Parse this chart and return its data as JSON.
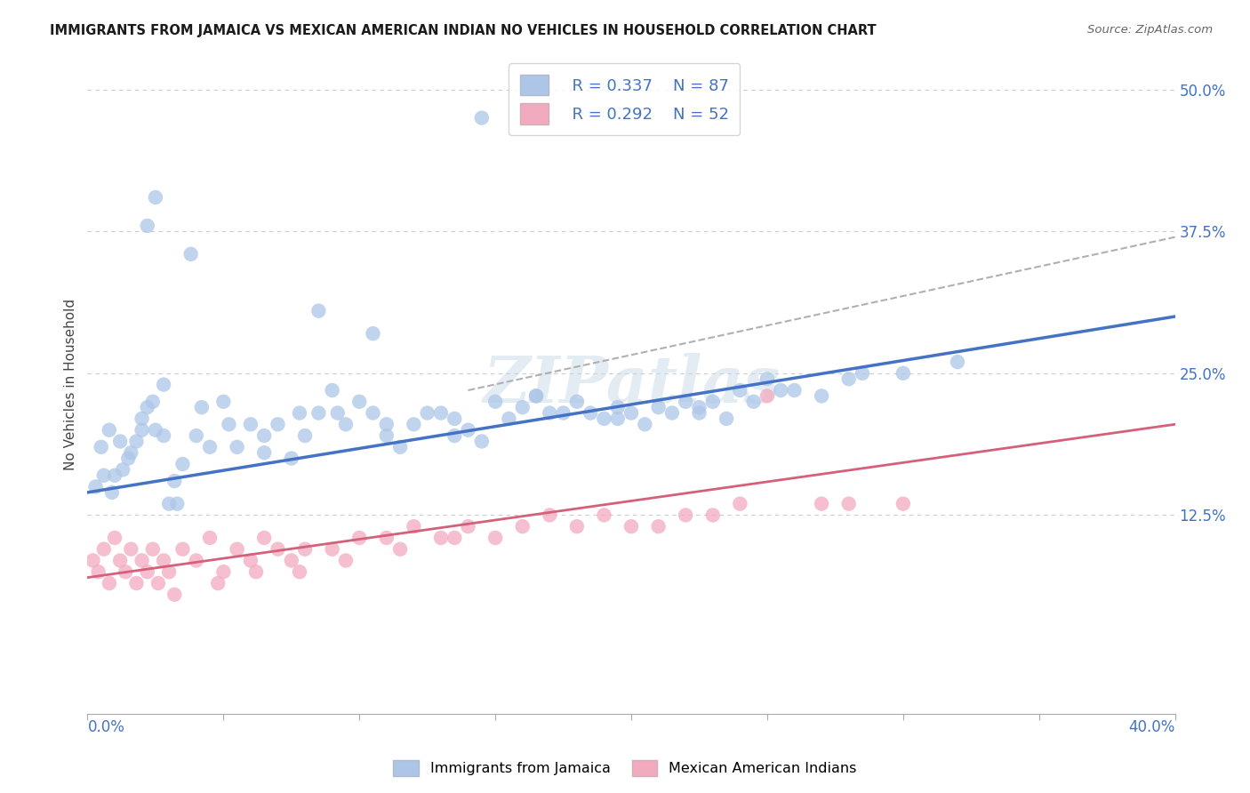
{
  "title": "IMMIGRANTS FROM JAMAICA VS MEXICAN AMERICAN INDIAN NO VEHICLES IN HOUSEHOLD CORRELATION CHART",
  "source": "Source: ZipAtlas.com",
  "ylabel": "No Vehicles in Household",
  "xlim": [
    0.0,
    40.0
  ],
  "ylim": [
    -5.0,
    53.0
  ],
  "yticks_right": [
    12.5,
    25.0,
    37.5,
    50.0
  ],
  "xticks": [
    0.0,
    5.0,
    10.0,
    15.0,
    20.0,
    25.0,
    30.0,
    35.0,
    40.0
  ],
  "color_blue": "#adc6e8",
  "color_pink": "#f2aabf",
  "color_blue_text": "#4472c4",
  "color_pink_text": "#d4607a",
  "color_trend_blue": "#4472c4",
  "color_trend_pink": "#d4607a",
  "color_trend_gray": "#b0b0b0",
  "watermark": "ZIPatlas",
  "scatter_blue_x": [
    0.5,
    0.8,
    1.0,
    1.2,
    1.5,
    1.8,
    2.0,
    2.2,
    2.5,
    2.8,
    3.0,
    3.2,
    3.5,
    4.0,
    4.5,
    5.0,
    5.5,
    6.0,
    6.5,
    7.0,
    7.5,
    8.0,
    8.5,
    9.0,
    9.5,
    10.0,
    10.5,
    11.0,
    11.5,
    12.0,
    12.5,
    13.0,
    13.5,
    14.0,
    14.5,
    15.0,
    15.5,
    16.0,
    16.5,
    17.0,
    17.5,
    18.0,
    18.5,
    19.0,
    19.5,
    20.0,
    20.5,
    21.0,
    21.5,
    22.0,
    22.5,
    23.0,
    23.5,
    24.0,
    24.5,
    25.0,
    26.0,
    27.0,
    28.0,
    30.0,
    0.3,
    0.6,
    0.9,
    1.3,
    1.6,
    2.0,
    2.4,
    2.8,
    3.3,
    4.2,
    5.2,
    6.5,
    7.8,
    9.2,
    11.0,
    13.5,
    16.5,
    19.5,
    22.5,
    25.5,
    28.5,
    32.0,
    2.2,
    2.5,
    3.8,
    8.5,
    10.5,
    14.5
  ],
  "scatter_blue_y": [
    18.5,
    20.0,
    16.0,
    19.0,
    17.5,
    19.0,
    21.0,
    22.0,
    20.0,
    19.5,
    13.5,
    15.5,
    17.0,
    19.5,
    18.5,
    22.5,
    18.5,
    20.5,
    18.0,
    20.5,
    17.5,
    19.5,
    21.5,
    23.5,
    20.5,
    22.5,
    21.5,
    19.5,
    18.5,
    20.5,
    21.5,
    21.5,
    19.5,
    20.0,
    19.0,
    22.5,
    21.0,
    22.0,
    23.0,
    21.5,
    21.5,
    22.5,
    21.5,
    21.0,
    21.0,
    21.5,
    20.5,
    22.0,
    21.5,
    22.5,
    21.5,
    22.5,
    21.0,
    23.5,
    22.5,
    24.5,
    23.5,
    23.0,
    24.5,
    25.0,
    15.0,
    16.0,
    14.5,
    16.5,
    18.0,
    20.0,
    22.5,
    24.0,
    13.5,
    22.0,
    20.5,
    19.5,
    21.5,
    21.5,
    20.5,
    21.0,
    23.0,
    22.0,
    22.0,
    23.5,
    25.0,
    26.0,
    38.0,
    40.5,
    35.5,
    30.5,
    28.5,
    47.5
  ],
  "scatter_pink_x": [
    0.2,
    0.4,
    0.6,
    0.8,
    1.0,
    1.2,
    1.4,
    1.6,
    1.8,
    2.0,
    2.2,
    2.4,
    2.6,
    2.8,
    3.0,
    3.5,
    4.0,
    4.5,
    5.0,
    5.5,
    6.0,
    6.5,
    7.0,
    7.5,
    8.0,
    9.0,
    10.0,
    11.0,
    12.0,
    13.0,
    14.0,
    15.0,
    16.0,
    17.0,
    18.0,
    19.0,
    20.0,
    21.0,
    22.0,
    23.0,
    24.0,
    25.0,
    27.0,
    30.0,
    3.2,
    4.8,
    6.2,
    7.8,
    9.5,
    11.5,
    13.5,
    28.0
  ],
  "scatter_pink_y": [
    8.5,
    7.5,
    9.5,
    6.5,
    10.5,
    8.5,
    7.5,
    9.5,
    6.5,
    8.5,
    7.5,
    9.5,
    6.5,
    8.5,
    7.5,
    9.5,
    8.5,
    10.5,
    7.5,
    9.5,
    8.5,
    10.5,
    9.5,
    8.5,
    9.5,
    9.5,
    10.5,
    10.5,
    11.5,
    10.5,
    11.5,
    10.5,
    11.5,
    12.5,
    11.5,
    12.5,
    11.5,
    11.5,
    12.5,
    12.5,
    13.5,
    23.0,
    13.5,
    13.5,
    5.5,
    6.5,
    7.5,
    7.5,
    8.5,
    9.5,
    10.5,
    13.5
  ],
  "trend_blue_x0": 0.0,
  "trend_blue_x1": 40.0,
  "trend_blue_y0": 14.5,
  "trend_blue_y1": 30.0,
  "trend_pink_x0": 0.0,
  "trend_pink_x1": 40.0,
  "trend_pink_y0": 7.0,
  "trend_pink_y1": 20.5,
  "trend_gray_x0": 14.0,
  "trend_gray_x1": 40.0,
  "trend_gray_y0": 23.5,
  "trend_gray_y1": 37.0,
  "background_color": "#ffffff"
}
